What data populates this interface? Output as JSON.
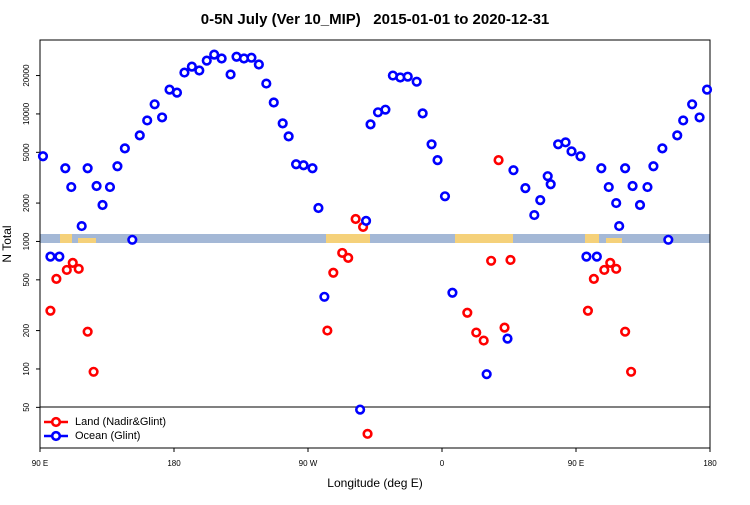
{
  "chart_data": {
    "type": "scatter",
    "title": "0-5N July (Ver 10_MIP)   2015-01-01 to 2020-12-31",
    "xlabel": "Longitude (deg E)",
    "ylabel": "N Total",
    "xlim": [
      90,
      540
    ],
    "xticks": [
      {
        "value": 90,
        "label": "90 E"
      },
      180,
      {
        "value": 270,
        "label": "90 W"
      },
      {
        "value": 360,
        "label": "0"
      },
      {
        "value": 450,
        "label": "90 E"
      },
      {
        "value": 540,
        "label": "180"
      }
    ],
    "ylim": [
      24,
      38000
    ],
    "yscale": "log",
    "yticks": [
      50,
      100,
      200,
      500,
      1000,
      2000,
      5000,
      10000,
      20000
    ],
    "legend": "lower left",
    "series": [
      {
        "name": "Land (Nadir&Glint)",
        "color": "#ff0000",
        "x": [
          97,
          101,
          108,
          112,
          116,
          122,
          126,
          283,
          287,
          293,
          297,
          302,
          307,
          310,
          377,
          383,
          388,
          393,
          398,
          402,
          406,
          458,
          462,
          469,
          473,
          477,
          483,
          487
        ],
        "values": [
          286,
          509,
          598,
          679,
          610,
          196,
          95,
          200,
          568,
          813,
          743,
          1500,
          1300,
          31,
          276,
          193,
          167,
          705,
          4340,
          211,
          716,
          286,
          509,
          598,
          679,
          610,
          196,
          95
        ]
      },
      {
        "name": "Ocean (Glint)",
        "color": "#0000ff",
        "x": [
          92,
          97,
          103,
          107,
          111,
          118,
          122,
          128,
          132,
          137,
          142,
          147,
          152,
          157,
          162,
          167,
          172,
          177,
          182,
          187,
          192,
          197,
          202,
          207,
          212,
          218,
          222,
          227,
          232,
          237,
          242,
          247,
          253,
          257,
          262,
          267,
          273,
          277,
          281,
          305,
          309,
          312,
          317,
          322,
          327,
          332,
          337,
          343,
          347,
          353,
          357,
          362,
          367,
          390,
          404,
          408,
          416,
          422,
          426,
          431,
          433,
          438,
          443,
          447,
          453,
          457,
          464,
          467,
          472,
          477,
          479,
          483,
          488,
          493,
          498,
          502,
          508,
          512,
          518,
          522,
          528,
          533,
          538
        ],
        "values": [
          4660,
          760,
          760,
          3750,
          2670,
          1320,
          3750,
          2720,
          1930,
          2670,
          3890,
          5370,
          1030,
          6790,
          8890,
          11900,
          9390,
          15500,
          14700,
          21100,
          23500,
          21900,
          26200,
          29200,
          27200,
          20400,
          28100,
          27200,
          27600,
          24400,
          17300,
          12300,
          8430,
          6670,
          4030,
          3960,
          3750,
          1830,
          368,
          48,
          1450,
          8280,
          10300,
          10800,
          20000,
          19300,
          19600,
          17900,
          10100,
          5780,
          4340,
          2260,
          396,
          91,
          173,
          3620,
          2620,
          1610,
          2110,
          3250,
          2810,
          5780,
          5990,
          5090,
          4660,
          760,
          760,
          3750,
          2670,
          2000,
          1320,
          3750,
          2720,
          1930,
          2670,
          3890,
          5370,
          1030,
          6790,
          8890,
          11900,
          9390,
          15500
        ]
      }
    ]
  }
}
